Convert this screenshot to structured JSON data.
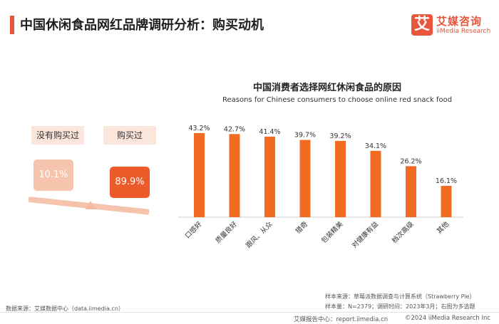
{
  "header": {
    "title": "中国休闲食品网红品牌调研分析：购买动机",
    "logo_mark": "艾",
    "logo_cn": "艾媒咨询",
    "logo_en": "iiMedia Research"
  },
  "left_panel": {
    "label_no": "没有购买过",
    "label_yes": "购买过",
    "value_no": "10.1%",
    "value_yes": "89.9%"
  },
  "chart_data": {
    "type": "bar",
    "title": "中国消费者选择网红休闲食品的原因",
    "subtitle": "Reasons for Chinese consumers to choose online red snack food",
    "categories": [
      "口感好",
      "质量良好",
      "跟风、从众",
      "猎奇",
      "包装精美",
      "对健康有益",
      "档次高级",
      "其他"
    ],
    "values": [
      43.2,
      42.7,
      41.4,
      39.7,
      39.2,
      34.1,
      26.2,
      16.1
    ],
    "value_labels": [
      "43.2%",
      "42.7%",
      "41.4%",
      "39.7%",
      "39.2%",
      "34.1%",
      "26.2%",
      "16.1%"
    ],
    "ylim": [
      0,
      45
    ],
    "color": "#f26b22",
    "grid": false
  },
  "notes": {
    "data_source": "数据来源：艾媒数据中心（data.iimedia.cn）",
    "sample_source": "样本来源：草莓派数据调查与计算系统（Strawberry Pie）",
    "sample_info": "样本量：N=2379；调研时间：2023年3月；右图为多选题"
  },
  "footer": {
    "report_center": "艾媒报告中心：report.iimedia.cn",
    "copyright": "©2024  iiMedia Research Inc"
  }
}
